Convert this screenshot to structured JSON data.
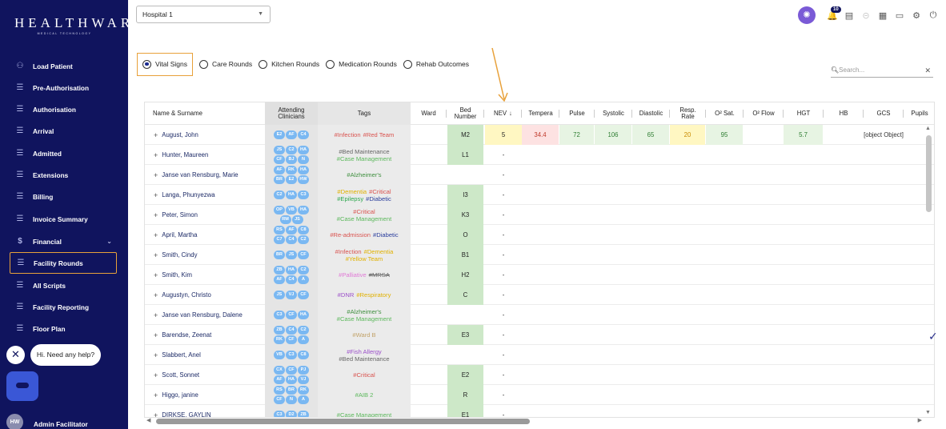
{
  "sidebar": {
    "logo_main": "HEALTHWARE",
    "logo_sub": "MEDICAL TECHNOLOGY",
    "items": [
      {
        "label": "Load Patient",
        "icon": "add-user-icon"
      },
      {
        "label": "Pre-Authorisation",
        "icon": "list-icon"
      },
      {
        "label": "Authorisation",
        "icon": "list-icon"
      },
      {
        "label": "Arrival",
        "icon": "list-icon"
      },
      {
        "label": "Admitted",
        "icon": "list-icon"
      },
      {
        "label": "Extensions",
        "icon": "list-icon"
      },
      {
        "label": "Billing",
        "icon": "list-icon"
      },
      {
        "label": "Invoice Summary",
        "icon": "list-icon"
      },
      {
        "label": "Financial",
        "icon": "dollar-icon"
      },
      {
        "label": "Facility Rounds",
        "icon": "list-icon"
      },
      {
        "label": "All Scripts",
        "icon": "list-icon"
      },
      {
        "label": "Facility Reporting",
        "icon": "list-icon"
      },
      {
        "label": "Floor Plan",
        "icon": "list-icon"
      }
    ],
    "active_item": "Facility Rounds",
    "help_text": "Hi. Need any help?",
    "user_initials": "HW",
    "user_name": "Admin Facilitator"
  },
  "topbar": {
    "hospital_select": "Hospital 1",
    "notification_count": "10"
  },
  "rounds": {
    "options": [
      "Vital Signs",
      "Care Rounds",
      "Kitchen Rounds",
      "Medication Rounds",
      "Rehab Outcomes"
    ],
    "selected": "Vital Signs"
  },
  "search": {
    "placeholder": "Search..."
  },
  "columns": {
    "name": "Name & Surname",
    "attending": "Attending Clinicians",
    "tags": "Tags",
    "ward": "Ward",
    "bed": "Bed Number",
    "nev": "NEV",
    "temp": "Tempera",
    "pulse": "Pulse",
    "systolic": "Systolic",
    "diastolic": "Diastolic",
    "resp": "Resp. Rate",
    "o2sat": "O² Sat.",
    "o2flow": "O² Flow",
    "hgt": "HGT",
    "hb": "HB",
    "gcs": "GCS",
    "pupils": "Pupils"
  },
  "rows": [
    {
      "name": "August, John",
      "clinicians": [
        "E2",
        "AF",
        "C4"
      ],
      "tags": [
        {
          "t": "#Infection",
          "c": "#d9534f"
        },
        {
          "t": "#Red Team",
          "c": "#d9534f"
        }
      ],
      "bed": "M2",
      "nev": "5",
      "temp": "34.4",
      "pulse": "72",
      "systolic": "106",
      "diastolic": "65",
      "resp": "20",
      "o2sat": "95",
      "hgt": "5.7",
      "gcs": "[object Object]"
    },
    {
      "name": "Hunter, Maureen",
      "clinicians": [
        "JS",
        "C2",
        "HA",
        "CF",
        "BJ",
        "N"
      ],
      "tags": [
        {
          "t": "#Bed Maintenance",
          "c": "#666666"
        },
        {
          "t": "#Case Management",
          "c": "#5cb85c"
        }
      ],
      "bed": "L1",
      "nev": "-"
    },
    {
      "name": "Janse van Rensburg, Marie",
      "clinicians": [
        "AF",
        "RK",
        "HA",
        "BR",
        "E2",
        "HW"
      ],
      "tags": [
        {
          "t": "#Alzheimer's",
          "c": "#3f8f3f"
        }
      ],
      "bed": "",
      "nev": "-"
    },
    {
      "name": "Langa, Phunyezwa",
      "clinicians": [
        "C2",
        "HA",
        "C3"
      ],
      "tags": [
        {
          "t": "#Dementia",
          "c": "#e0b000"
        },
        {
          "t": "#Critical",
          "c": "#d9534f"
        },
        {
          "t": "#Epilepsy",
          "c": "#2fa84f"
        },
        {
          "t": "#Diabetic",
          "c": "#2a3d9c"
        }
      ],
      "bed": "I3",
      "nev": "-"
    },
    {
      "name": "Peter, Simon",
      "clinicians": [
        "OP",
        "VB",
        "HA",
        "RM",
        "JS"
      ],
      "tags": [
        {
          "t": "#Critical",
          "c": "#d9534f"
        },
        {
          "t": "#Case Management",
          "c": "#5cb85c"
        }
      ],
      "bed": "K3",
      "nev": "-"
    },
    {
      "name": "April, Martha",
      "clinicians": [
        "RS",
        "AF",
        "C8",
        "C7",
        "C4",
        "C2"
      ],
      "tags": [
        {
          "t": "#Re-admission",
          "c": "#d9534f"
        },
        {
          "t": "#Diabetic",
          "c": "#2a3d9c"
        }
      ],
      "bed": "O",
      "nev": "-"
    },
    {
      "name": "Smith, Cindy",
      "clinicians": [
        "BR",
        "JS",
        "CF"
      ],
      "tags": [
        {
          "t": "#Infection",
          "c": "#d9534f"
        },
        {
          "t": "#Dementia",
          "c": "#e0b000"
        },
        {
          "t": "#Yellow Team",
          "c": "#e0b000"
        }
      ],
      "bed": "B1",
      "nev": "-"
    },
    {
      "name": "Smith, Kim",
      "clinicians": [
        "ZB",
        "HA",
        "C2",
        "AF",
        "C4",
        "A"
      ],
      "tags": [
        {
          "t": "#Palliative",
          "c": "#e07ad6"
        },
        {
          "t": "#MRSA",
          "c": "#666666"
        }
      ],
      "bed": "H2",
      "nev": "-"
    },
    {
      "name": "Augustyn, Christo",
      "clinicians": [
        "JS",
        "VJ",
        "CF"
      ],
      "tags": [
        {
          "t": "#DNR",
          "c": "#9b4fc9"
        },
        {
          "t": "#Respiratory",
          "c": "#e0b000"
        }
      ],
      "bed": "C",
      "nev": "-"
    },
    {
      "name": "Janse van Rensburg, Dalene",
      "clinicians": [
        "C3",
        "CF",
        "HA"
      ],
      "tags": [
        {
          "t": "#Alzheimer's",
          "c": "#3f8f3f"
        },
        {
          "t": "#Case Management",
          "c": "#5cb85c"
        }
      ],
      "bed": "",
      "nev": "-"
    },
    {
      "name": "Barendse, Zeenat",
      "clinicians": [
        "ZB",
        "C4",
        "C2",
        "RK",
        "CF",
        "A"
      ],
      "tags": [
        {
          "t": "#Ward B",
          "c": "#c2a36a"
        }
      ],
      "bed": "E3",
      "nev": "-"
    },
    {
      "name": "Slabbert, Anel",
      "clinicians": [
        "VB",
        "C3",
        "C8"
      ],
      "tags": [
        {
          "t": "#Fish Allergy",
          "c": "#9b4fc9"
        },
        {
          "t": "#Bed Maintenance",
          "c": "#666666"
        }
      ],
      "bed": "",
      "nev": "-"
    },
    {
      "name": "Scott, Sonnet",
      "clinicians": [
        "CX",
        "CF",
        "PJ",
        "AF",
        "HA",
        "VJ"
      ],
      "tags": [
        {
          "t": "#Critical",
          "c": "#d9534f"
        }
      ],
      "bed": "E2",
      "nev": "-"
    },
    {
      "name": "Higgo, janine",
      "clinicians": [
        "RS",
        "BR",
        "RK",
        "CF",
        "N",
        "A"
      ],
      "tags": [
        {
          "t": "#AIB 2",
          "c": "#5cb85c"
        }
      ],
      "bed": "R",
      "nev": "-"
    },
    {
      "name": "DIRKSE, GAYLIN",
      "clinicians": [
        "C3",
        "D2",
        "ZB"
      ],
      "tags": [
        {
          "t": "#Case Management",
          "c": "#5cb85c"
        }
      ],
      "bed": "E1",
      "nev": "-"
    }
  ],
  "colors": {
    "sidebar_bg": "#10145e",
    "accent": "#e8a13a",
    "chip": "#7ab8f2",
    "bed_green": "#cde8c8",
    "nev_yellow": "#fff7c2"
  }
}
